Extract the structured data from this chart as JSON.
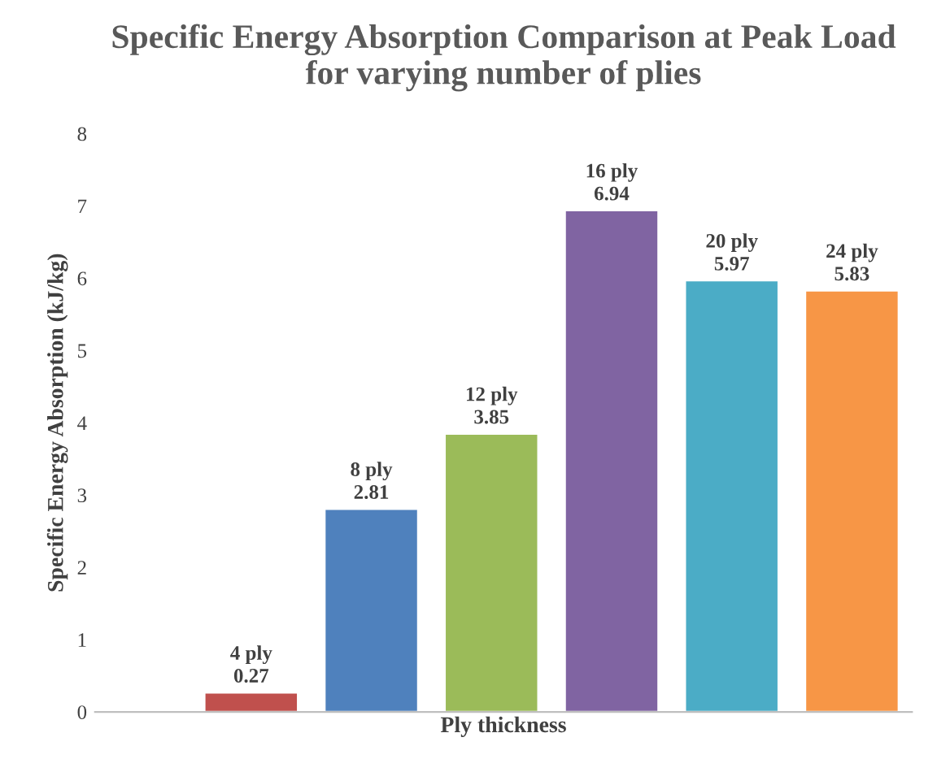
{
  "chart_data": {
    "type": "bar",
    "title": "Specific Energy Absorption Comparison at Peak Load\nfor varying number of plies",
    "xlabel": "Ply thickness",
    "ylabel": "Specific Energy Absorption (kJ/kg)",
    "categories": [
      "4 ply",
      "8 ply",
      "12 ply",
      "16 ply",
      "20 ply",
      "24 ply"
    ],
    "values": [
      0.27,
      2.81,
      3.85,
      6.94,
      5.97,
      5.83
    ],
    "colors": [
      "#c0504d",
      "#4f81bd",
      "#9bbb59",
      "#8064a2",
      "#4bacc6",
      "#f79646"
    ],
    "ylim": [
      0,
      8
    ],
    "yticks": [
      0,
      1,
      2,
      3,
      4,
      5,
      6,
      7,
      8
    ],
    "data_labels": true,
    "tick_labels": "y",
    "grid": false,
    "legend": false
  }
}
